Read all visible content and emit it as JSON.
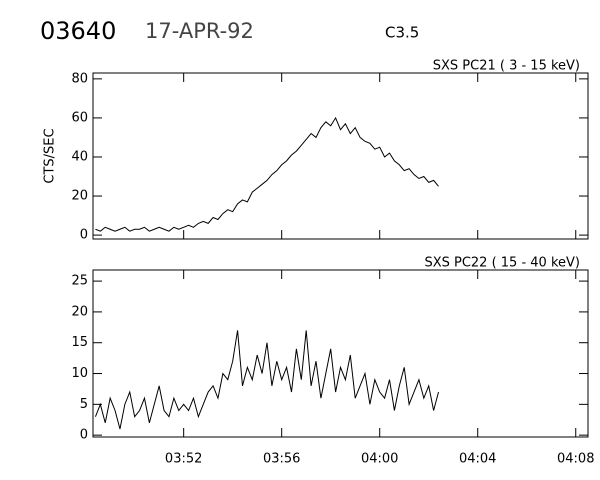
{
  "header": {
    "id": "03640",
    "date": "17-APR-92",
    "class": "C3.5"
  },
  "chart_data": [
    {
      "type": "line",
      "title": "SXS PC21  (  3 - 15 keV)",
      "ylabel": "CTS/SEC",
      "color": "#000000",
      "xlim": [
        228.3,
        248.5
      ],
      "ylim": [
        -2,
        83
      ],
      "yticks": [
        0,
        20,
        40,
        60,
        80
      ],
      "xticks": [
        {
          "value": 232,
          "label": "03:52"
        },
        {
          "value": 236,
          "label": "03:56"
        },
        {
          "value": 240,
          "label": "04:00"
        },
        {
          "value": 244,
          "label": "04:04"
        },
        {
          "value": 248,
          "label": "04:08"
        }
      ],
      "xtick_labels": false,
      "x": [
        228.4,
        228.6,
        228.8,
        229.0,
        229.2,
        229.4,
        229.6,
        229.8,
        230.0,
        230.2,
        230.4,
        230.6,
        230.8,
        231.0,
        231.2,
        231.4,
        231.6,
        231.8,
        232.0,
        232.2,
        232.4,
        232.6,
        232.8,
        233.0,
        233.2,
        233.4,
        233.6,
        233.8,
        234.0,
        234.2,
        234.4,
        234.6,
        234.8,
        235.0,
        235.2,
        235.4,
        235.6,
        235.8,
        236.0,
        236.2,
        236.4,
        236.6,
        236.8,
        237.0,
        237.2,
        237.4,
        237.6,
        237.8,
        238.0,
        238.2,
        238.4,
        238.6,
        238.8,
        239.0,
        239.2,
        239.4,
        239.6,
        239.8,
        240.0,
        240.2,
        240.4,
        240.6,
        240.8,
        241.0,
        241.2,
        241.4,
        241.6,
        241.8,
        242.0,
        242.2,
        242.4
      ],
      "values": [
        3,
        2,
        4,
        3,
        2,
        3,
        4,
        2,
        3,
        3,
        4,
        2,
        3,
        4,
        3,
        2,
        4,
        3,
        4,
        5,
        4,
        6,
        7,
        6,
        9,
        8,
        11,
        13,
        12,
        16,
        18,
        17,
        22,
        24,
        26,
        28,
        31,
        33,
        36,
        38,
        41,
        43,
        46,
        49,
        52,
        50,
        55,
        58,
        56,
        60,
        54,
        57,
        52,
        55,
        50,
        48,
        47,
        44,
        45,
        40,
        42,
        38,
        36,
        33,
        34,
        31,
        29,
        30,
        27,
        28,
        25
      ]
    },
    {
      "type": "line",
      "title": "SXS PC22  ( 15 - 40 keV)",
      "color": "#000000",
      "xlim": [
        228.3,
        248.5
      ],
      "ylim": [
        -0.3,
        26.8
      ],
      "yticks": [
        0,
        5,
        10,
        15,
        20,
        25
      ],
      "xticks": [
        {
          "value": 232,
          "label": "03:52"
        },
        {
          "value": 236,
          "label": "03:56"
        },
        {
          "value": 240,
          "label": "04:00"
        },
        {
          "value": 244,
          "label": "04:04"
        },
        {
          "value": 248,
          "label": "04:08"
        }
      ],
      "xtick_labels": true,
      "x": [
        228.4,
        228.6,
        228.8,
        229.0,
        229.2,
        229.4,
        229.6,
        229.8,
        230.0,
        230.2,
        230.4,
        230.6,
        230.8,
        231.0,
        231.2,
        231.4,
        231.6,
        231.8,
        232.0,
        232.2,
        232.4,
        232.6,
        232.8,
        233.0,
        233.2,
        233.4,
        233.6,
        233.8,
        234.0,
        234.2,
        234.4,
        234.6,
        234.8,
        235.0,
        235.2,
        235.4,
        235.6,
        235.8,
        236.0,
        236.2,
        236.4,
        236.6,
        236.8,
        237.0,
        237.2,
        237.4,
        237.6,
        237.8,
        238.0,
        238.2,
        238.4,
        238.6,
        238.8,
        239.0,
        239.2,
        239.4,
        239.6,
        239.8,
        240.0,
        240.2,
        240.4,
        240.6,
        240.8,
        241.0,
        241.2,
        241.4,
        241.6,
        241.8,
        242.0,
        242.2,
        242.4
      ],
      "values": [
        3,
        5,
        2,
        6,
        4,
        1,
        5,
        7,
        3,
        4,
        6,
        2,
        5,
        8,
        4,
        3,
        6,
        4,
        5,
        4,
        6,
        3,
        5,
        7,
        8,
        6,
        10,
        9,
        12,
        17,
        8,
        11,
        9,
        13,
        10,
        15,
        8,
        12,
        9,
        11,
        7,
        14,
        9,
        17,
        8,
        12,
        6,
        10,
        14,
        7,
        11,
        9,
        13,
        6,
        8,
        10,
        5,
        9,
        7,
        6,
        9,
        4,
        8,
        11,
        5,
        7,
        9,
        6,
        8,
        4,
        7
      ]
    }
  ]
}
